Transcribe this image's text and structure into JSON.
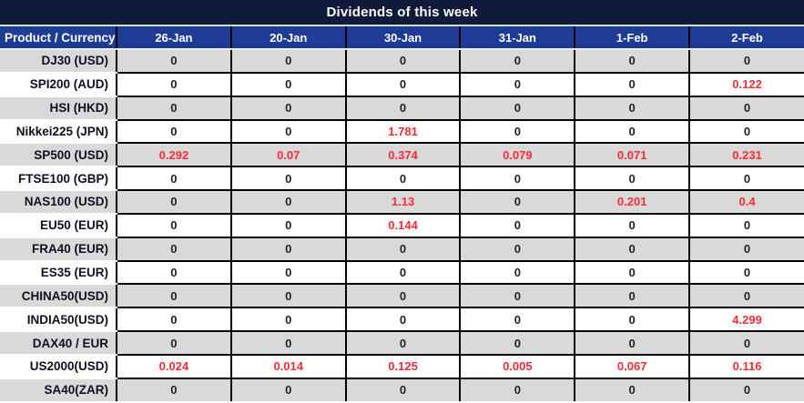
{
  "title": "Dividends of this week",
  "table": {
    "product_header": "Product / Currency",
    "date_headers": [
      "26-Jan",
      "20-Jan",
      "30-Jan",
      "31-Jan",
      "1-Feb",
      "2-Feb"
    ],
    "rows": [
      {
        "product": "DJ30 (USD)",
        "values": [
          "0",
          "0",
          "0",
          "0",
          "0",
          "0"
        ]
      },
      {
        "product": "SPI200 (AUD)",
        "values": [
          "0",
          "0",
          "0",
          "0",
          "0",
          "0.122"
        ]
      },
      {
        "product": "HSI (HKD)",
        "values": [
          "0",
          "0",
          "0",
          "0",
          "0",
          "0"
        ]
      },
      {
        "product": "Nikkei225 (JPN)",
        "values": [
          "0",
          "0",
          "1.781",
          "0",
          "0",
          "0"
        ]
      },
      {
        "product": "SP500 (USD)",
        "values": [
          "0.292",
          "0.07",
          "0.374",
          "0.079",
          "0.071",
          "0.231"
        ]
      },
      {
        "product": "FTSE100 (GBP)",
        "values": [
          "0",
          "0",
          "0",
          "0",
          "0",
          "0"
        ]
      },
      {
        "product": "NAS100 (USD)",
        "values": [
          "0",
          "0",
          "1.13",
          "0",
          "0.201",
          "0.4"
        ]
      },
      {
        "product": "EU50 (EUR)",
        "values": [
          "0",
          "0",
          "0.144",
          "0",
          "0",
          "0"
        ]
      },
      {
        "product": "FRA40 (EUR)",
        "values": [
          "0",
          "0",
          "0",
          "0",
          "0",
          "0"
        ]
      },
      {
        "product": "ES35 (EUR)",
        "values": [
          "0",
          "0",
          "0",
          "0",
          "0",
          "0"
        ]
      },
      {
        "product": "CHINA50(USD)",
        "values": [
          "0",
          "0",
          "0",
          "0",
          "0",
          "0"
        ]
      },
      {
        "product": "INDIA50(USD)",
        "values": [
          "0",
          "0",
          "0",
          "0",
          "0",
          "4.299"
        ]
      },
      {
        "product": "DAX40 / EUR",
        "values": [
          "0",
          "0",
          "0",
          "0",
          "0",
          "0"
        ]
      },
      {
        "product": "US2000(USD)",
        "values": [
          "0.024",
          "0.014",
          "0.125",
          "0.005",
          "0.067",
          "0.116"
        ]
      },
      {
        "product": "SA40(ZAR)",
        "values": [
          "0",
          "0",
          "0",
          "0",
          "0",
          "0"
        ]
      }
    ]
  },
  "colors": {
    "title_bar_navy": "#101b3c",
    "header_blue": "#1e3c96",
    "row_gray": "#d9d9d9",
    "row_white": "#ffffff",
    "grid_black": "#000000",
    "value_dark": "#1c2130",
    "value_red": "#fb2b36"
  }
}
